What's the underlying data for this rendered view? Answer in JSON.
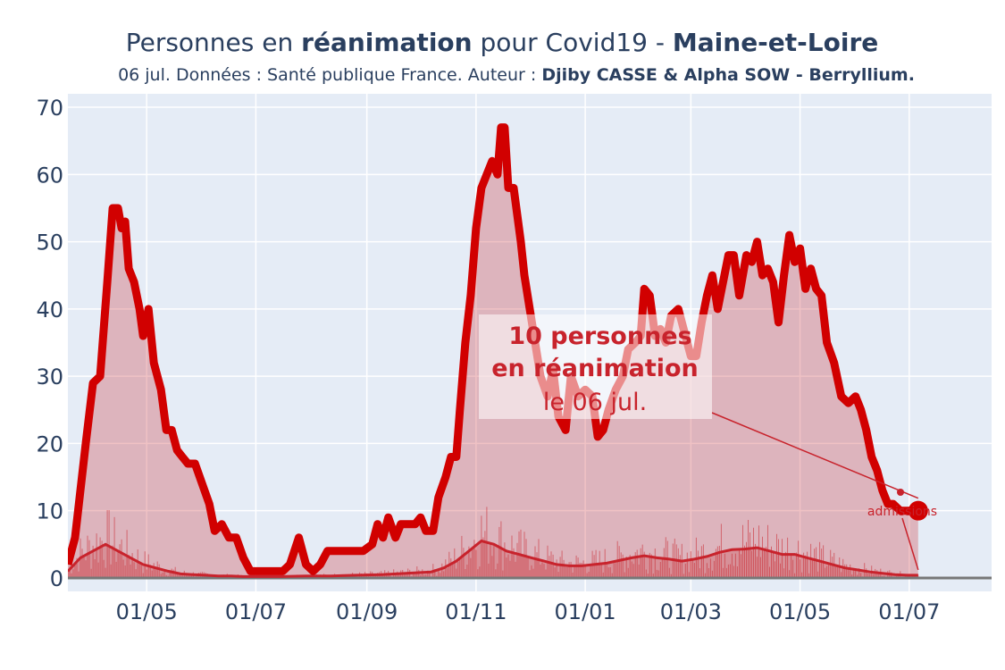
{
  "chart_data": {
    "type": "area",
    "title_parts": {
      "t1": "Personnes en ",
      "t2": "réanimation",
      "t3": " pour Covid19 - ",
      "t4": "Maine-et-Loire"
    },
    "subtitle_parts": {
      "s1": "06 jul. Données : Santé publique France. Auteur : ",
      "s2": "Djiby CASSE & Alpha SOW - Berryllium."
    },
    "xlabel": "",
    "ylabel": "",
    "x_start": "2020-03-18",
    "x_end": "2021-07-06",
    "xlim": [
      "2020-03-18",
      "2021-08-16"
    ],
    "ylim": [
      -2,
      72
    ],
    "yticks": [
      0,
      10,
      20,
      30,
      40,
      50,
      60,
      70
    ],
    "xticks": [
      {
        "date": "2020-05-01",
        "label": "01/05"
      },
      {
        "date": "2020-07-01",
        "label": "01/07"
      },
      {
        "date": "2020-09-01",
        "label": "01/09"
      },
      {
        "date": "2020-11-01",
        "label": "01/11"
      },
      {
        "date": "2021-01-01",
        "label": "01/01"
      },
      {
        "date": "2021-03-01",
        "label": "01/03"
      },
      {
        "date": "2021-05-01",
        "label": "01/05"
      },
      {
        "date": "2021-07-01",
        "label": "01/07"
      }
    ],
    "grid": true,
    "series": [
      {
        "role": "reanimation",
        "color": "#d10000",
        "points": [
          [
            "2020-03-18",
            2
          ],
          [
            "2020-03-22",
            6
          ],
          [
            "2020-03-28",
            20
          ],
          [
            "2020-04-01",
            29
          ],
          [
            "2020-04-05",
            30
          ],
          [
            "2020-04-09",
            44
          ],
          [
            "2020-04-12",
            55
          ],
          [
            "2020-04-15",
            55
          ],
          [
            "2020-04-17",
            52
          ],
          [
            "2020-04-19",
            53
          ],
          [
            "2020-04-21",
            46
          ],
          [
            "2020-04-24",
            44
          ],
          [
            "2020-04-27",
            40
          ],
          [
            "2020-04-29",
            36
          ],
          [
            "2020-05-02",
            40
          ],
          [
            "2020-05-05",
            32
          ],
          [
            "2020-05-09",
            28
          ],
          [
            "2020-05-12",
            22
          ],
          [
            "2020-05-15",
            22
          ],
          [
            "2020-05-18",
            19
          ],
          [
            "2020-05-21",
            18
          ],
          [
            "2020-05-24",
            17
          ],
          [
            "2020-05-28",
            17
          ],
          [
            "2020-06-01",
            14
          ],
          [
            "2020-06-05",
            11
          ],
          [
            "2020-06-08",
            7
          ],
          [
            "2020-06-12",
            8
          ],
          [
            "2020-06-16",
            6
          ],
          [
            "2020-06-20",
            6
          ],
          [
            "2020-06-24",
            3
          ],
          [
            "2020-06-28",
            1
          ],
          [
            "2020-07-02",
            1
          ],
          [
            "2020-07-10",
            1
          ],
          [
            "2020-07-16",
            1
          ],
          [
            "2020-07-20",
            2
          ],
          [
            "2020-07-25",
            6
          ],
          [
            "2020-07-29",
            2
          ],
          [
            "2020-08-02",
            1
          ],
          [
            "2020-08-06",
            2
          ],
          [
            "2020-08-10",
            4
          ],
          [
            "2020-08-15",
            4
          ],
          [
            "2020-08-20",
            4
          ],
          [
            "2020-08-25",
            4
          ],
          [
            "2020-08-30",
            4
          ],
          [
            "2020-09-04",
            5
          ],
          [
            "2020-09-07",
            8
          ],
          [
            "2020-09-10",
            6
          ],
          [
            "2020-09-13",
            9
          ],
          [
            "2020-09-17",
            6
          ],
          [
            "2020-09-20",
            8
          ],
          [
            "2020-09-24",
            8
          ],
          [
            "2020-09-28",
            8
          ],
          [
            "2020-10-01",
            9
          ],
          [
            "2020-10-04",
            7
          ],
          [
            "2020-10-08",
            7
          ],
          [
            "2020-10-11",
            12
          ],
          [
            "2020-10-15",
            15
          ],
          [
            "2020-10-18",
            18
          ],
          [
            "2020-10-21",
            18
          ],
          [
            "2020-10-23",
            25
          ],
          [
            "2020-10-26",
            35
          ],
          [
            "2020-10-29",
            42
          ],
          [
            "2020-11-01",
            52
          ],
          [
            "2020-11-04",
            58
          ],
          [
            "2020-11-07",
            60
          ],
          [
            "2020-11-10",
            62
          ],
          [
            "2020-11-13",
            60
          ],
          [
            "2020-11-15",
            67
          ],
          [
            "2020-11-17",
            67
          ],
          [
            "2020-11-19",
            58
          ],
          [
            "2020-11-22",
            58
          ],
          [
            "2020-11-26",
            50
          ],
          [
            "2020-11-28",
            45
          ],
          [
            "2020-12-01",
            40
          ],
          [
            "2020-12-04",
            35
          ],
          [
            "2020-12-07",
            30
          ],
          [
            "2020-12-11",
            27
          ],
          [
            "2020-12-14",
            31
          ],
          [
            "2020-12-17",
            24
          ],
          [
            "2020-12-21",
            22
          ],
          [
            "2020-12-24",
            30
          ],
          [
            "2020-12-28",
            27
          ],
          [
            "2021-01-01",
            28
          ],
          [
            "2021-01-05",
            27
          ],
          [
            "2021-01-08",
            21
          ],
          [
            "2021-01-11",
            22
          ],
          [
            "2021-01-14",
            25
          ],
          [
            "2021-01-18",
            28
          ],
          [
            "2021-01-22",
            30
          ],
          [
            "2021-01-25",
            34
          ],
          [
            "2021-01-29",
            35
          ],
          [
            "2021-02-01",
            36
          ],
          [
            "2021-02-03",
            43
          ],
          [
            "2021-02-06",
            42
          ],
          [
            "2021-02-09",
            36
          ],
          [
            "2021-02-12",
            37
          ],
          [
            "2021-02-15",
            35
          ],
          [
            "2021-02-18",
            39
          ],
          [
            "2021-02-22",
            40
          ],
          [
            "2021-02-26",
            36
          ],
          [
            "2021-03-01",
            33
          ],
          [
            "2021-03-04",
            33
          ],
          [
            "2021-03-07",
            38
          ],
          [
            "2021-03-10",
            42
          ],
          [
            "2021-03-13",
            45
          ],
          [
            "2021-03-16",
            40
          ],
          [
            "2021-03-19",
            44
          ],
          [
            "2021-03-22",
            48
          ],
          [
            "2021-03-25",
            48
          ],
          [
            "2021-03-28",
            42
          ],
          [
            "2021-04-01",
            48
          ],
          [
            "2021-04-04",
            47
          ],
          [
            "2021-04-07",
            50
          ],
          [
            "2021-04-10",
            45
          ],
          [
            "2021-04-13",
            46
          ],
          [
            "2021-04-16",
            44
          ],
          [
            "2021-04-19",
            38
          ],
          [
            "2021-04-22",
            45
          ],
          [
            "2021-04-25",
            51
          ],
          [
            "2021-04-28",
            47
          ],
          [
            "2021-05-01",
            49
          ],
          [
            "2021-05-04",
            43
          ],
          [
            "2021-05-07",
            46
          ],
          [
            "2021-05-10",
            43
          ],
          [
            "2021-05-13",
            42
          ],
          [
            "2021-05-16",
            35
          ],
          [
            "2021-05-20",
            32
          ],
          [
            "2021-05-24",
            27
          ],
          [
            "2021-05-28",
            26
          ],
          [
            "2021-06-01",
            27
          ],
          [
            "2021-06-04",
            25
          ],
          [
            "2021-06-07",
            22
          ],
          [
            "2021-06-10",
            18
          ],
          [
            "2021-06-13",
            16
          ],
          [
            "2021-06-16",
            13
          ],
          [
            "2021-06-19",
            11
          ],
          [
            "2021-06-22",
            11
          ],
          [
            "2021-06-26",
            10
          ],
          [
            "2021-06-30",
            10
          ],
          [
            "2021-07-03",
            10
          ],
          [
            "2021-07-06",
            10
          ]
        ]
      },
      {
        "role": "admissions",
        "color": "#c8232c",
        "points": [
          [
            "2020-03-18",
            1
          ],
          [
            "2020-03-25",
            3
          ],
          [
            "2020-04-01",
            4
          ],
          [
            "2020-04-08",
            5
          ],
          [
            "2020-04-15",
            4
          ],
          [
            "2020-04-22",
            3
          ],
          [
            "2020-04-29",
            2
          ],
          [
            "2020-05-06",
            1.5
          ],
          [
            "2020-05-13",
            1
          ],
          [
            "2020-05-20",
            0.6
          ],
          [
            "2020-05-27",
            0.5
          ],
          [
            "2020-06-03",
            0.4
          ],
          [
            "2020-06-10",
            0.3
          ],
          [
            "2020-06-17",
            0.3
          ],
          [
            "2020-06-24",
            0.2
          ],
          [
            "2020-07-01",
            0.2
          ],
          [
            "2020-07-15",
            0.2
          ],
          [
            "2020-07-29",
            0.3
          ],
          [
            "2020-08-12",
            0.3
          ],
          [
            "2020-08-26",
            0.4
          ],
          [
            "2020-09-09",
            0.5
          ],
          [
            "2020-09-23",
            0.7
          ],
          [
            "2020-10-07",
            0.9
          ],
          [
            "2020-10-14",
            1.5
          ],
          [
            "2020-10-21",
            2.5
          ],
          [
            "2020-10-28",
            4
          ],
          [
            "2020-11-04",
            5.5
          ],
          [
            "2020-11-11",
            5
          ],
          [
            "2020-11-18",
            4
          ],
          [
            "2020-11-25",
            3.5
          ],
          [
            "2020-12-02",
            3
          ],
          [
            "2020-12-09",
            2.5
          ],
          [
            "2020-12-16",
            2
          ],
          [
            "2020-12-23",
            1.8
          ],
          [
            "2020-12-30",
            1.8
          ],
          [
            "2021-01-06",
            2
          ],
          [
            "2021-01-13",
            2.2
          ],
          [
            "2021-01-20",
            2.6
          ],
          [
            "2021-01-27",
            3
          ],
          [
            "2021-02-03",
            3.3
          ],
          [
            "2021-02-10",
            3
          ],
          [
            "2021-02-17",
            2.8
          ],
          [
            "2021-02-24",
            2.5
          ],
          [
            "2021-03-03",
            2.8
          ],
          [
            "2021-03-10",
            3.2
          ],
          [
            "2021-03-17",
            3.8
          ],
          [
            "2021-03-24",
            4.2
          ],
          [
            "2021-03-31",
            4.3
          ],
          [
            "2021-04-07",
            4.5
          ],
          [
            "2021-04-14",
            4
          ],
          [
            "2021-04-21",
            3.5
          ],
          [
            "2021-04-28",
            3.5
          ],
          [
            "2021-05-05",
            3
          ],
          [
            "2021-05-12",
            2.5
          ],
          [
            "2021-05-19",
            2
          ],
          [
            "2021-05-26",
            1.5
          ],
          [
            "2021-06-02",
            1.2
          ],
          [
            "2021-06-09",
            0.9
          ],
          [
            "2021-06-16",
            0.7
          ],
          [
            "2021-06-23",
            0.5
          ],
          [
            "2021-06-30",
            0.4
          ],
          [
            "2021-07-06",
            0.4
          ]
        ]
      }
    ],
    "annotations": {
      "main_line1": "10 personnes",
      "main_line2": "en réanimation",
      "main_line3": "le 06 jul.",
      "admissions": "admissions"
    },
    "last_point": {
      "date": "2021-07-06",
      "value": 10
    }
  }
}
